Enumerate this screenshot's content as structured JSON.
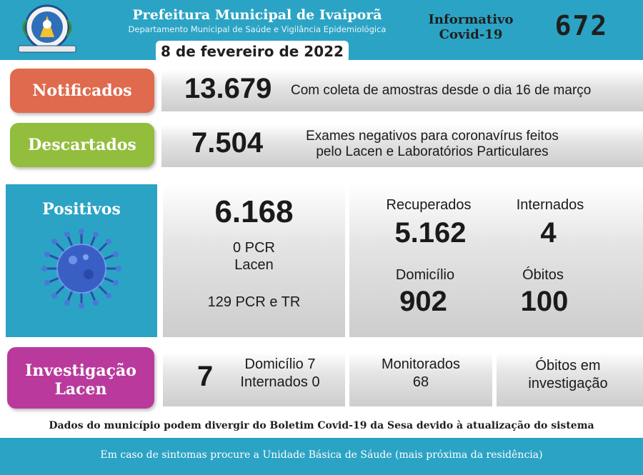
{
  "header": {
    "title": "Prefeitura Municipal de Ivaiporã",
    "subtitle": "Departamento Municipal de Saúde e Vigilância Epidemiológica",
    "date": "8 de fevereiro de 2022",
    "info_label_line1": "Informativo",
    "info_label_line2": "Covid-19",
    "edition": "672"
  },
  "notificados": {
    "label": "Notificados",
    "value": "13.679",
    "description": "Com coleta de amostras desde o dia 16 de março"
  },
  "descartados": {
    "label": "Descartados",
    "value": "7.504",
    "description_line1": "Exames negativos para coronavírus feitos",
    "description_line2": "pelo Lacen e Laboratórios Particulares"
  },
  "positivos": {
    "label": "Positivos",
    "value": "6.168",
    "pcr_lacen_line1": "0 PCR",
    "pcr_lacen_line2": "Lacen",
    "pcr_tr": "129 PCR e TR",
    "recuperados_label": "Recuperados",
    "recuperados_value": "5.162",
    "internados_label": "Internados",
    "internados_value": "4",
    "domicilio_label": "Domicílio",
    "domicilio_value": "902",
    "obitos_label": "Óbitos",
    "obitos_value": "100"
  },
  "investigacao": {
    "label_line1": "Investigação",
    "label_line2": "Lacen",
    "value": "7",
    "domicilio": "Domicílio 7",
    "internados": "Internados 0",
    "monitorados_label": "Monitorados",
    "monitorados_value": "68",
    "obitos_inv_line1": "Óbitos em",
    "obitos_inv_line2": "investigação"
  },
  "note": "Dados do município podem divergir do Boletim Covid-19 da Sesa devido à atualização do sistema",
  "footer": "Em caso de sintomas procure a Unidade Básica de Sáude (mais próxima da residência)",
  "colors": {
    "header_blue": "#2ba3c5",
    "notificados": "#e06a4e",
    "descartados": "#93bd3c",
    "positivos": "#2ba3c5",
    "investigacao": "#b93a9c"
  }
}
